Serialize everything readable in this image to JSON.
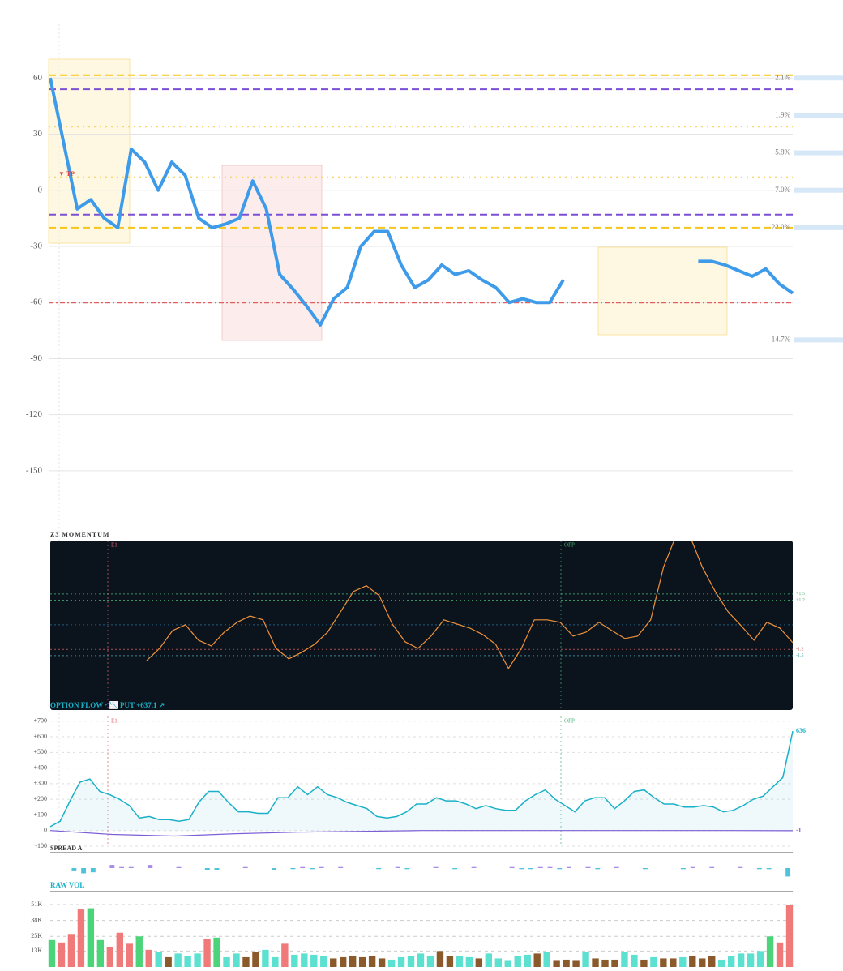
{
  "chart_data": [
    {
      "type": "line",
      "ylim": [
        -160,
        90
      ],
      "yticks": [
        60,
        30,
        0,
        -30,
        -60,
        -90,
        -120,
        -150
      ],
      "grid": true,
      "series": [
        {
          "color": "#3d9be9",
          "values": [
            60,
            25,
            -10,
            -5,
            -15,
            -20,
            22,
            15,
            0,
            15,
            8,
            -15,
            -20,
            -18,
            -15,
            5,
            -10,
            -45,
            -53,
            -62,
            -72,
            -58,
            -52,
            -30,
            -22,
            -22,
            -40,
            -52,
            -48,
            -40,
            -45,
            -43,
            -48,
            -52,
            -60,
            -58,
            -60,
            -60,
            -48,
            null,
            null,
            null,
            null,
            null,
            null,
            null,
            null,
            null,
            -38,
            -38,
            -40,
            -43,
            -46,
            -42,
            -50,
            -55
          ]
        }
      ],
      "levels": [
        {
          "value": 61.5,
          "color": "#f5c518",
          "dash": "9 5"
        },
        {
          "value": 54,
          "color": "#7b4fd6",
          "dash": "9 5"
        },
        {
          "value": 34,
          "color": "#f5d76e",
          "dash": "2 5"
        },
        {
          "value": 7,
          "color": "#f5d76e",
          "dash": "2 5"
        },
        {
          "value": -13,
          "color": "#7b4fd6",
          "dash": "9 5"
        },
        {
          "value": -20,
          "color": "#f5c518",
          "dash": "9 5"
        },
        {
          "value": -60,
          "color": "#e06060",
          "dash": "6 3 2 3"
        }
      ],
      "annotations": [
        {
          "text": "2.1%",
          "y": 60
        },
        {
          "text": "1.9%",
          "y": 40
        },
        {
          "text": "5.8%",
          "y": 20
        },
        {
          "text": "7.0%",
          "y": 0
        },
        {
          "text": "22.0%",
          "y": -20
        },
        {
          "text": "14.7%",
          "y": -80
        }
      ],
      "marker_text": "▼ TP"
    },
    {
      "type": "line",
      "title": "Z3 MOMENTUM",
      "ylim": [
        -4.15,
        4.1
      ],
      "events": [
        "E1",
        "OPP"
      ],
      "levels": [
        {
          "value": 1.5,
          "label": "+1.5",
          "color": "#4caf78"
        },
        {
          "value": 1.2,
          "label": "+1.2",
          "color": "#4caf78"
        },
        {
          "value": 0,
          "color": "#2f6a9a"
        },
        {
          "value": -1.2,
          "label": "-1.2",
          "color": "#d06060"
        },
        {
          "value": -1.5,
          "label": "-1.5",
          "color": "#4aa0b0"
        }
      ],
      "series": [
        {
          "color": "#f0923a",
          "values": [
            -1.74,
            -1.15,
            -0.28,
            0,
            -0.75,
            -1.03,
            -0.36,
            0.12,
            0.43,
            0.24,
            -1.15,
            -1.66,
            -1.34,
            -0.95,
            -0.36,
            0.63,
            1.62,
            1.9,
            1.42,
            0.04,
            -0.83,
            -1.15,
            -0.55,
            0.24,
            0.04,
            -0.16,
            -0.47,
            -0.95,
            -2.13,
            -1.15,
            0.24,
            0.24,
            0.12,
            -0.55,
            -0.36,
            0.12,
            -0.28,
            -0.67,
            -0.55,
            0.24,
            2.81,
            4.39,
            4.39,
            2.81,
            1.62,
            0.63,
            -0.04,
            -0.75,
            0.12,
            -0.16,
            -0.87
          ]
        }
      ]
    },
    {
      "type": "line",
      "title": "OPTION FLOW · 📉 PUT +637.1 ↗",
      "ylim": [
        -100,
        730
      ],
      "events": [
        "E1",
        "OPP"
      ],
      "yticks": [
        {
          "value": 700,
          "label": "+700"
        },
        {
          "value": 600,
          "label": "+600"
        },
        {
          "value": 500,
          "label": "+500"
        },
        {
          "value": 400,
          "label": "+400"
        },
        {
          "value": 300,
          "label": "+300"
        },
        {
          "value": 200,
          "label": "+200"
        },
        {
          "value": 100,
          "label": "+100"
        },
        0,
        -100
      ],
      "series": [
        {
          "color": "#1ab0c8",
          "values": [
            25,
            60,
            190,
            310,
            330,
            250,
            230,
            200,
            160,
            80,
            90,
            70,
            70,
            60,
            70,
            180,
            250,
            250,
            180,
            120,
            120,
            110,
            110,
            210,
            210,
            280,
            230,
            280,
            230,
            210,
            180,
            160,
            140,
            90,
            80,
            90,
            120,
            170,
            170,
            210,
            190,
            190,
            170,
            140,
            160,
            140,
            130,
            130,
            190,
            230,
            260,
            200,
            160,
            120,
            190,
            210,
            210,
            140,
            190,
            250,
            260,
            210,
            170,
            170,
            150,
            150,
            160,
            150,
            120,
            130,
            160,
            200,
            220,
            280,
            340,
            636
          ]
        },
        {
          "color": "#7b5fd6",
          "values": [
            0,
            -25,
            -35,
            -20,
            -10,
            -5,
            0,
            0,
            0,
            0,
            0,
            0,
            -1
          ]
        }
      ]
    },
    {
      "type": "bar",
      "title": "SPREAD A",
      "ylim": [
        -10,
        10
      ],
      "pos_color": "#a98be8",
      "neg_color": "#4fc3d9",
      "values": [
        0,
        0,
        -3,
        -5,
        -4,
        0,
        3,
        1,
        1,
        0,
        3,
        0,
        0,
        1,
        0,
        0,
        -2,
        -2,
        0,
        0,
        1,
        0,
        0,
        -2,
        0,
        -1,
        1,
        -1,
        1,
        0,
        1,
        0,
        0,
        0,
        -1,
        0,
        1,
        -1,
        0,
        0,
        1,
        0,
        -1,
        0,
        1,
        0,
        0,
        0,
        1,
        -1,
        -1,
        1,
        1,
        -1,
        1,
        0,
        1,
        -1,
        0,
        1,
        0,
        0,
        -1,
        0,
        0,
        0,
        -1,
        1,
        0,
        1,
        0,
        0,
        1,
        0,
        -1,
        -1,
        0,
        -8
      ]
    },
    {
      "type": "bar",
      "title": "RAW VOL",
      "ylim": [
        0,
        55000
      ],
      "grid": true,
      "yticks": [
        {
          "value": 51000,
          "label": "51K"
        },
        {
          "value": 38000,
          "label": "38K"
        },
        {
          "value": 25000,
          "label": "25K"
        },
        {
          "value": 13000,
          "label": "13K"
        }
      ],
      "values": [
        22000,
        20000,
        27000,
        47000,
        48000,
        22000,
        16000,
        28000,
        19000,
        25000,
        14000,
        12000,
        8000,
        11000,
        9000,
        11000,
        23000,
        24000,
        8000,
        11000,
        8000,
        12000,
        14000,
        8000,
        19000,
        10000,
        11000,
        10000,
        9000,
        7000,
        8000,
        9000,
        8000,
        9000,
        7000,
        6000,
        8000,
        9000,
        11000,
        9000,
        13000,
        9000,
        9000,
        8000,
        7000,
        11000,
        7000,
        5000,
        9000,
        10000,
        11000,
        12000,
        5000,
        6000,
        5000,
        12000,
        7000,
        6000,
        6000,
        12000,
        10000,
        6000,
        8000,
        7000,
        7000,
        8000,
        9000,
        7000,
        9000,
        6000,
        9000,
        11000,
        11000,
        13000,
        25000,
        20000,
        51000
      ],
      "colors": [
        "#4cd47a",
        "#f07a7a",
        "#f07a7a",
        "#f07a7a",
        "#4cd47a",
        "#4cd47a",
        "#f07a7a",
        "#f07a7a",
        "#f07a7a",
        "#4cd47a",
        "#f07a7a",
        "#5ce0d0",
        "#8b5a2b",
        "#5ce0d0",
        "#5ce0d0",
        "#5ce0d0",
        "#f07a7a",
        "#4cd47a",
        "#5ce0d0",
        "#5ce0d0",
        "#8b5a2b",
        "#8b5a2b",
        "#5ce0d0",
        "#5ce0d0",
        "#f07a7a",
        "#5ce0d0",
        "#5ce0d0",
        "#5ce0d0",
        "#5ce0d0",
        "#8b5a2b",
        "#8b5a2b",
        "#8b5a2b",
        "#8b5a2b",
        "#8b5a2b",
        "#8b5a2b",
        "#5ce0d0",
        "#5ce0d0",
        "#5ce0d0",
        "#5ce0d0",
        "#5ce0d0",
        "#8b5a2b",
        "#8b5a2b",
        "#5ce0d0",
        "#5ce0d0",
        "#8b5a2b",
        "#5ce0d0",
        "#5ce0d0",
        "#5ce0d0",
        "#5ce0d0",
        "#5ce0d0",
        "#8b5a2b",
        "#5ce0d0",
        "#8b5a2b",
        "#8b5a2b",
        "#8b5a2b",
        "#5ce0d0",
        "#8b5a2b",
        "#8b5a2b",
        "#8b5a2b",
        "#5ce0d0",
        "#5ce0d0",
        "#8b5a2b",
        "#5ce0d0",
        "#8b5a2b",
        "#8b5a2b",
        "#5ce0d0",
        "#8b5a2b",
        "#8b5a2b",
        "#8b5a2b",
        "#5ce0d0",
        "#5ce0d0",
        "#5ce0d0",
        "#5ce0d0",
        "#5ce0d0",
        "#4cd47a",
        "#f07a7a",
        "#f07a7a"
      ]
    }
  ]
}
